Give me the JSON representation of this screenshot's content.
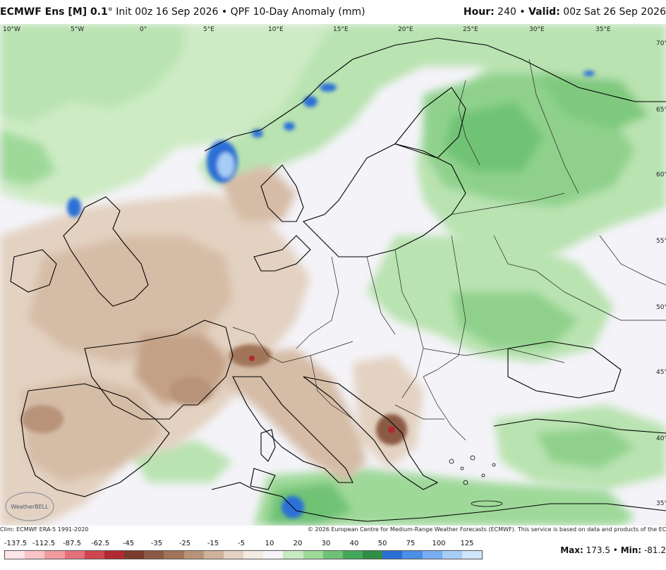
{
  "header": {
    "model": "ECMWF Ens [M] 0.1",
    "degree": "°",
    "init": "Init 00z 16 Sep 2026",
    "sep": "•",
    "product": "QPF 10-Day Anomaly (mm)",
    "hour_label": "Hour:",
    "hour_value": "240",
    "valid_label": "Valid:",
    "valid_value": "00z Sat 26 Sep 2026"
  },
  "axes": {
    "lon_labels": [
      "10°W",
      "5°W",
      "0°",
      "5°E",
      "10°E",
      "15°E",
      "20°E",
      "25°E",
      "30°E",
      "35°E"
    ],
    "lat_labels": [
      "70°",
      "65°",
      "60°",
      "55°",
      "50°",
      "45°",
      "40°",
      "35°"
    ]
  },
  "credits": {
    "clim": "Clim: ECMWF ERA-5 1991-2020",
    "copyright": "© 2026 European Centre for Medium-Range Weather Forecasts (ECMWF). This service is based on data and products of the ECMWF."
  },
  "logo_text": "WeatherBELL",
  "legend": {
    "ticks": [
      "-137.5",
      "-112.5",
      "-87.5",
      "-62.5",
      "-45",
      "-35",
      "-25",
      "-15",
      "-5",
      "10",
      "20",
      "30",
      "40",
      "50",
      "75",
      "100",
      "125"
    ],
    "colors": [
      "#fde6e8",
      "#f8c4c8",
      "#f19aa0",
      "#e4707a",
      "#cf4650",
      "#b02a32",
      "#7a3a2c",
      "#8b5a45",
      "#a07458",
      "#b8937a",
      "#cfb29c",
      "#e3d2c1",
      "#f3eae1",
      "#f6f3f9",
      "#c8eac0",
      "#9fd99a",
      "#6fc275",
      "#43a95a",
      "#2f8f47",
      "#2a6fd6",
      "#4a8ee6",
      "#77aef0",
      "#a6cdf6",
      "#cfe6fb"
    ],
    "max_label": "Max:",
    "max_value": "173.5",
    "sep": "•",
    "min_label": "Min:",
    "min_value": "-81.2"
  }
}
